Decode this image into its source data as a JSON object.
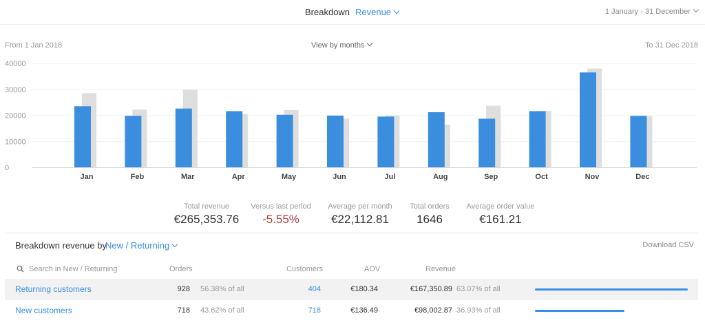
{
  "header": {
    "breakdown_label": "Breakdown",
    "metric_label": "Revenue",
    "date_range": "1 January - 31 December"
  },
  "chart_header": {
    "from": "From 1 Jan 2018",
    "view_by": "View by months",
    "to": "To 31 Dec 2018"
  },
  "colors": {
    "accent": "#3a8ee6",
    "current_bar": "#3b8ede",
    "previous_bar": "#dedede",
    "negative": "#b0413e"
  },
  "chart_data": {
    "type": "bar",
    "categories": [
      "Jan",
      "Feb",
      "Mar",
      "Apr",
      "May",
      "Jun",
      "Jul",
      "Aug",
      "Sep",
      "Oct",
      "Nov",
      "Dec"
    ],
    "series": [
      {
        "values": [
          23500,
          19800,
          22600,
          21600,
          20200,
          19900,
          19500,
          21200,
          18700,
          21600,
          36500,
          19800
        ]
      },
      {
        "values": [
          28500,
          22200,
          29800,
          20500,
          22000,
          18700,
          20000,
          16400,
          23700,
          21700,
          38000,
          19700
        ]
      }
    ],
    "yticks": [
      0,
      10000,
      20000,
      30000,
      40000
    ],
    "ylim": [
      0,
      40000
    ],
    "grid": true,
    "legend": "none"
  },
  "summary": [
    {
      "label": "Total revenue",
      "value": "€265,353.76"
    },
    {
      "label": "Versus last period",
      "value": "-5.55%"
    },
    {
      "label": "Average per month",
      "value": "€22,112.81"
    },
    {
      "label": "Total orders",
      "value": "1646"
    },
    {
      "label": "Average order value",
      "value": "€161.21"
    }
  ],
  "breakdown": {
    "title": "Breakdown revenue by",
    "selected": "New / Returning",
    "download": "Download CSV",
    "search_placeholder": "Search in New / Returning",
    "columns": {
      "orders": "Orders",
      "customers": "Customers",
      "aov": "AOV",
      "revenue": "Revenue"
    },
    "rows": [
      {
        "name": "Returning customers",
        "orders": "928",
        "orders_pct": "56.38% of all",
        "customers": "404",
        "aov": "€180.34",
        "revenue": "€167,350.89",
        "revenue_pct": "63.07% of all",
        "share": 0.6307
      },
      {
        "name": "New customers",
        "orders": "718",
        "orders_pct": "43.62% of all",
        "customers": "718",
        "aov": "€136.49",
        "revenue": "€98,002.87",
        "revenue_pct": "36.93% of all",
        "share": 0.3693
      }
    ]
  }
}
